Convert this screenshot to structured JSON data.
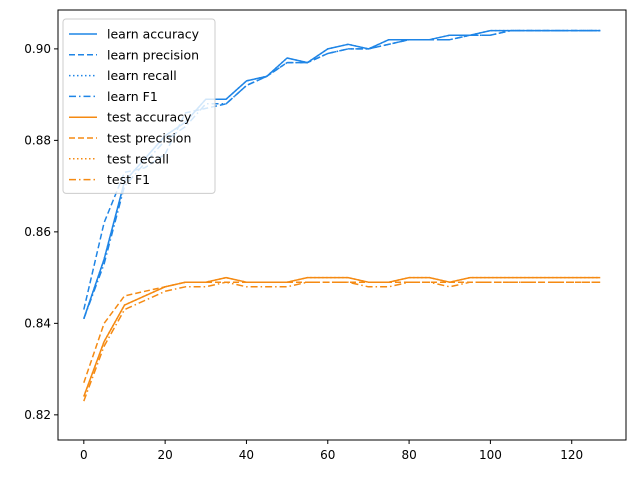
{
  "chart_data": {
    "type": "line",
    "title": "",
    "xlabel": "",
    "ylabel": "",
    "xlim": [
      -6.35,
      133.35
    ],
    "ylim": [
      0.8145,
      0.9085
    ],
    "xticks": [
      0,
      20,
      40,
      60,
      80,
      100,
      120
    ],
    "yticks": [
      0.82,
      0.84,
      0.86,
      0.88,
      0.9
    ],
    "xtick_labels": [
      "0",
      "20",
      "40",
      "60",
      "80",
      "100",
      "120"
    ],
    "ytick_labels": [
      "0.82",
      "0.84",
      "0.86",
      "0.88",
      "0.90"
    ],
    "grid": false,
    "legend_position": "top-left",
    "colors": {
      "learn": "#1f85e6",
      "test": "#f58a12"
    },
    "x": [
      0,
      5,
      10,
      15,
      20,
      25,
      30,
      35,
      40,
      45,
      50,
      55,
      60,
      65,
      70,
      75,
      80,
      85,
      90,
      95,
      100,
      105,
      110,
      115,
      120,
      127
    ],
    "series": [
      {
        "name": "learn accuracy",
        "group": "learn",
        "style": "solid",
        "values": [
          0.841,
          0.854,
          0.871,
          0.876,
          0.881,
          0.884,
          0.889,
          0.889,
          0.893,
          0.894,
          0.898,
          0.897,
          0.9,
          0.901,
          0.9,
          0.902,
          0.902,
          0.902,
          0.903,
          0.903,
          0.904,
          0.904,
          0.904,
          0.904,
          0.904,
          0.904
        ]
      },
      {
        "name": "learn precision",
        "group": "learn",
        "style": "dashed",
        "values": [
          0.843,
          0.862,
          0.873,
          0.874,
          0.877,
          0.886,
          0.887,
          0.888,
          0.892,
          0.894,
          0.897,
          0.897,
          0.899,
          0.9,
          0.9,
          0.901,
          0.902,
          0.902,
          0.902,
          0.903,
          0.903,
          0.904,
          0.904,
          0.904,
          0.904,
          0.904
        ]
      },
      {
        "name": "learn recall",
        "group": "learn",
        "style": "dotted",
        "values": [
          0.841,
          0.854,
          0.871,
          0.876,
          0.881,
          0.884,
          0.889,
          0.889,
          0.893,
          0.894,
          0.898,
          0.897,
          0.9,
          0.901,
          0.9,
          0.902,
          0.902,
          0.902,
          0.903,
          0.903,
          0.904,
          0.904,
          0.904,
          0.904,
          0.904,
          0.904
        ]
      },
      {
        "name": "learn F1",
        "group": "learn",
        "style": "dashdot",
        "values": [
          0.841,
          0.853,
          0.87,
          0.875,
          0.88,
          0.883,
          0.888,
          0.888,
          0.892,
          0.894,
          0.897,
          0.897,
          0.899,
          0.9,
          0.9,
          0.901,
          0.902,
          0.902,
          0.902,
          0.903,
          0.903,
          0.904,
          0.904,
          0.904,
          0.904,
          0.904
        ]
      },
      {
        "name": "test accuracy",
        "group": "test",
        "style": "solid",
        "values": [
          0.824,
          0.836,
          0.844,
          0.846,
          0.848,
          0.849,
          0.849,
          0.85,
          0.849,
          0.849,
          0.849,
          0.85,
          0.85,
          0.85,
          0.849,
          0.849,
          0.85,
          0.85,
          0.849,
          0.85,
          0.85,
          0.85,
          0.85,
          0.85,
          0.85,
          0.85
        ]
      },
      {
        "name": "test precision",
        "group": "test",
        "style": "dashed",
        "values": [
          0.827,
          0.84,
          0.846,
          0.847,
          0.848,
          0.849,
          0.849,
          0.849,
          0.849,
          0.849,
          0.849,
          0.849,
          0.849,
          0.849,
          0.849,
          0.849,
          0.849,
          0.849,
          0.849,
          0.849,
          0.849,
          0.849,
          0.849,
          0.849,
          0.849,
          0.849
        ]
      },
      {
        "name": "test recall",
        "group": "test",
        "style": "dotted",
        "values": [
          0.824,
          0.836,
          0.844,
          0.846,
          0.848,
          0.849,
          0.849,
          0.85,
          0.849,
          0.849,
          0.849,
          0.85,
          0.85,
          0.85,
          0.849,
          0.849,
          0.85,
          0.85,
          0.849,
          0.85,
          0.85,
          0.85,
          0.85,
          0.85,
          0.85,
          0.85
        ]
      },
      {
        "name": "test F1",
        "group": "test",
        "style": "dashdot",
        "values": [
          0.823,
          0.835,
          0.843,
          0.845,
          0.847,
          0.848,
          0.848,
          0.849,
          0.848,
          0.848,
          0.848,
          0.849,
          0.849,
          0.849,
          0.848,
          0.848,
          0.849,
          0.849,
          0.848,
          0.849,
          0.849,
          0.849,
          0.849,
          0.849,
          0.849,
          0.849
        ]
      }
    ]
  }
}
